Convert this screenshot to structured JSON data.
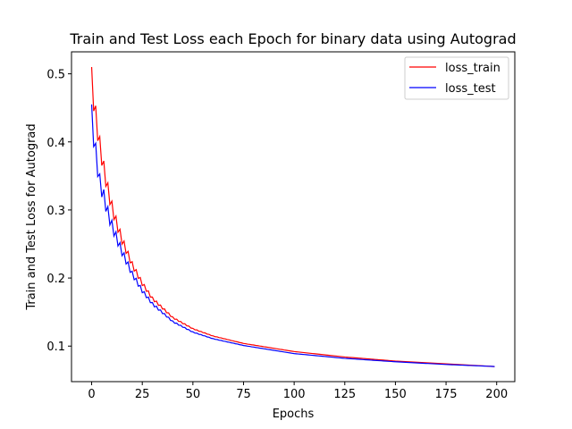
{
  "chart_data": {
    "type": "line",
    "title": "Train and Test Loss each Epoch for binary data using Autograd",
    "xlabel": "Epochs",
    "ylabel": "Train and Test Loss for Autograd",
    "xlim": [
      -9.95,
      208.95
    ],
    "ylim": [
      0.0478,
      0.5323
    ],
    "x_ticks": [
      0,
      25,
      50,
      75,
      100,
      125,
      150,
      175,
      200
    ],
    "y_ticks": [
      0.1,
      0.2,
      0.3,
      0.4,
      0.5
    ],
    "grid": false,
    "legend_position": "top-right",
    "series": [
      {
        "name": "loss_train",
        "color": "#ff0000",
        "zigzag_period": 2,
        "zigzag_amplitude_start": 0.035,
        "zigzag_decay": 0.07,
        "x": [
          0,
          1,
          2,
          3,
          4,
          6,
          8,
          10,
          12,
          15,
          20,
          25,
          30,
          40,
          50,
          60,
          75,
          100,
          125,
          150,
          175,
          199
        ],
        "y": [
          0.51,
          0.478,
          0.453,
          0.43,
          0.408,
          0.372,
          0.34,
          0.313,
          0.291,
          0.262,
          0.224,
          0.195,
          0.172,
          0.143,
          0.126,
          0.115,
          0.104,
          0.092,
          0.084,
          0.078,
          0.074,
          0.07
        ]
      },
      {
        "name": "loss_test",
        "color": "#0000ff",
        "zigzag_period": 2,
        "zigzag_amplitude_start": 0.032,
        "zigzag_decay": 0.07,
        "x": [
          0,
          1,
          2,
          3,
          4,
          6,
          8,
          10,
          12,
          15,
          20,
          25,
          30,
          40,
          50,
          60,
          75,
          100,
          125,
          150,
          175,
          199
        ],
        "y": [
          0.455,
          0.423,
          0.398,
          0.375,
          0.353,
          0.33,
          0.305,
          0.285,
          0.268,
          0.244,
          0.21,
          0.184,
          0.164,
          0.137,
          0.121,
          0.111,
          0.101,
          0.089,
          0.082,
          0.077,
          0.073,
          0.07
        ]
      }
    ]
  }
}
